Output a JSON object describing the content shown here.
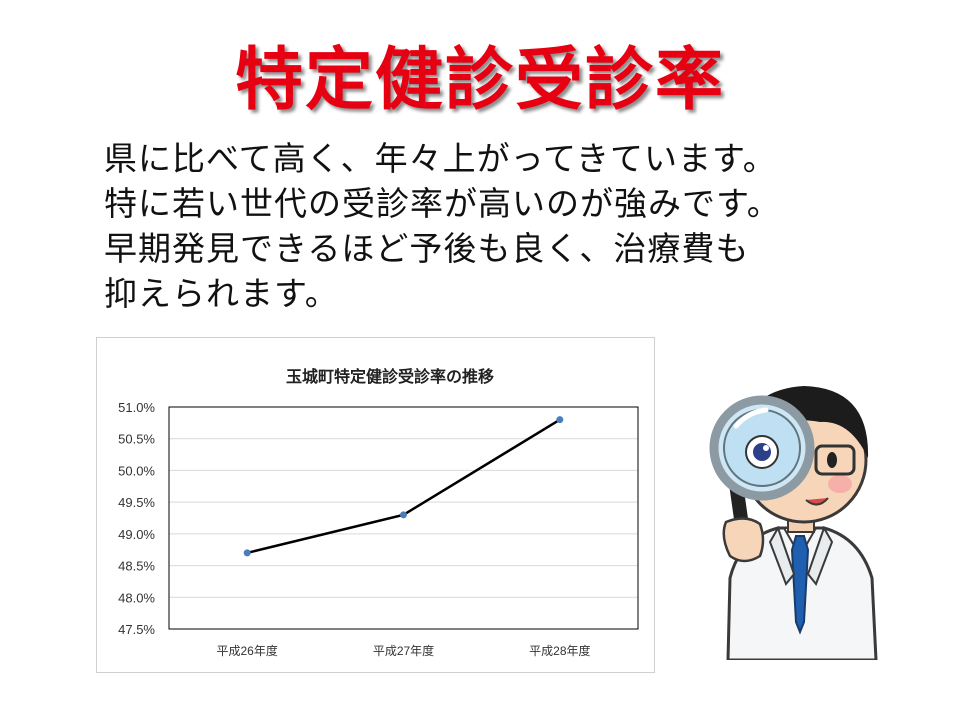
{
  "slide": {
    "title": "特定健診受診率",
    "body_lines": [
      "県に比べて高く、年々上がってきています。",
      "特に若い世代の受診率が高いのが強みです。",
      "早期発見できるほど予後も良く、治療費も",
      "抑えられます。"
    ],
    "title_color": "#e60012"
  },
  "chart_data": {
    "type": "line",
    "title": "玉城町特定健診受診率の推移",
    "categories": [
      "平成26年度",
      "平成27年度",
      "平成28年度"
    ],
    "series": [
      {
        "values": [
          48.7,
          49.3,
          50.8
        ]
      }
    ],
    "ylim": [
      47.5,
      51.0
    ],
    "yticks": [
      51.0,
      50.5,
      50.0,
      49.5,
      49.0,
      48.5,
      48.0,
      47.5
    ],
    "ytick_labels": [
      "51.0%",
      "50.5%",
      "50.0%",
      "49.5%",
      "49.0%",
      "48.5%",
      "48.0%",
      "47.5%"
    ],
    "grid": true,
    "line_color": "#000000",
    "marker_color": "#4a7ebb",
    "legend": "none"
  },
  "illustration": {
    "icon": "doctor-with-magnifier-icon"
  }
}
